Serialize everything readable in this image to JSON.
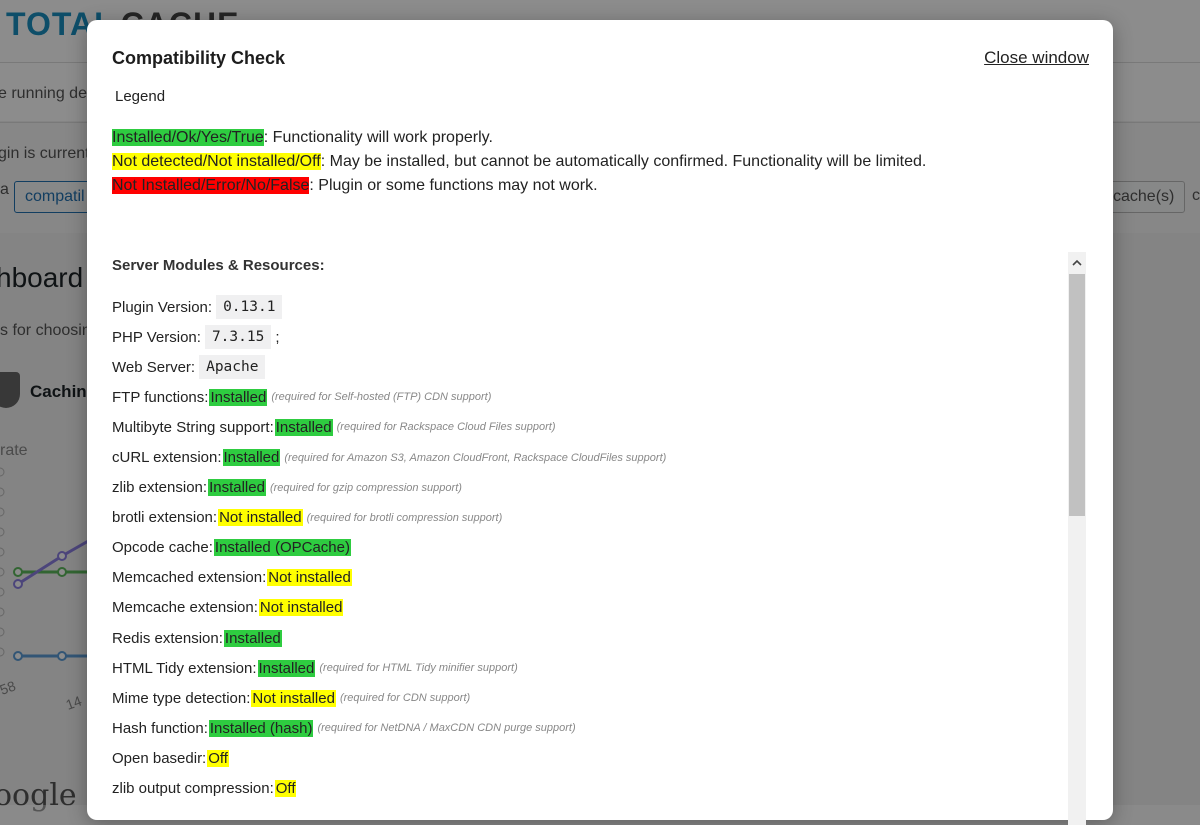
{
  "background": {
    "logo_left": "TOTAL",
    "logo_right": "CACHE",
    "notice_text": "e running de",
    "plugin_text": "gin is currentl",
    "button_a": "a",
    "compat_button": "compatil",
    "cache_button": "cache(s)",
    "cache_c": "c",
    "dashboard_title": "hboard",
    "dashboard_sub": "s for choosin",
    "caching_label": "Cachin",
    "rate_label": "rate",
    "google_text": "oogle",
    "chart_label_1": "58",
    "chart_label_2": "14"
  },
  "modal": {
    "title": "Compatibility Check",
    "close_label": "Close window",
    "legend_title": "Legend",
    "legend": [
      {
        "tag": "Installed/Ok/Yes/True",
        "status": "green",
        "text": ": Functionality will work properly."
      },
      {
        "tag": "Not detected/Not installed/Off",
        "status": "yellow",
        "text": ": May be installed, but cannot be automatically confirmed. Functionality will be limited."
      },
      {
        "tag": "Not Installed/Error/No/False",
        "status": "red",
        "text": ": Plugin or some functions may not work."
      }
    ],
    "section_title": "Server Modules & Resources:",
    "rows": [
      {
        "label": "Plugin Version:",
        "code": "0.13.1"
      },
      {
        "label": "PHP Version:",
        "code": "7.3.15",
        "suffix": ";"
      },
      {
        "label": "Web Server:",
        "code": "Apache"
      },
      {
        "label": "FTP functions:",
        "value": "Installed",
        "status": "green",
        "note": "(required for Self-hosted (FTP) CDN support)"
      },
      {
        "label": "Multibyte String support:",
        "value": "Installed",
        "status": "green",
        "note": "(required for Rackspace Cloud Files support)"
      },
      {
        "label": "cURL extension:",
        "value": "Installed",
        "status": "green",
        "note": "(required for Amazon S3, Amazon CloudFront, Rackspace CloudFiles support)"
      },
      {
        "label": "zlib extension:",
        "value": "Installed",
        "status": "green",
        "note": "(required for gzip compression support)"
      },
      {
        "label": "brotli extension:",
        "value": "Not installed",
        "status": "yellow",
        "note": "(required for brotli compression support)"
      },
      {
        "label": "Opcode cache:",
        "value": "Installed (OPCache)",
        "status": "green"
      },
      {
        "label": "Memcached extension:",
        "value": "Not installed",
        "status": "yellow"
      },
      {
        "label": "Memcache extension:",
        "value": "Not installed",
        "status": "yellow"
      },
      {
        "label": "Redis extension:",
        "value": "Installed",
        "status": "green"
      },
      {
        "label": "HTML Tidy extension:",
        "value": "Installed",
        "status": "green",
        "note": "(required for HTML Tidy minifier support)"
      },
      {
        "label": "Mime type detection:",
        "value": "Not installed",
        "status": "yellow",
        "note": "(required for CDN support)"
      },
      {
        "label": "Hash function:",
        "value": "Installed (hash)",
        "status": "green",
        "note": "(required for NetDNA / MaxCDN CDN purge support)"
      },
      {
        "label": "Open basedir:",
        "value": "Off",
        "status": "yellow"
      },
      {
        "label": "zlib output compression:",
        "value": "Off",
        "status": "yellow"
      }
    ]
  },
  "colors": {
    "green": "#2ecc40",
    "yellow": "#ffff00",
    "red": "#ff0000"
  }
}
